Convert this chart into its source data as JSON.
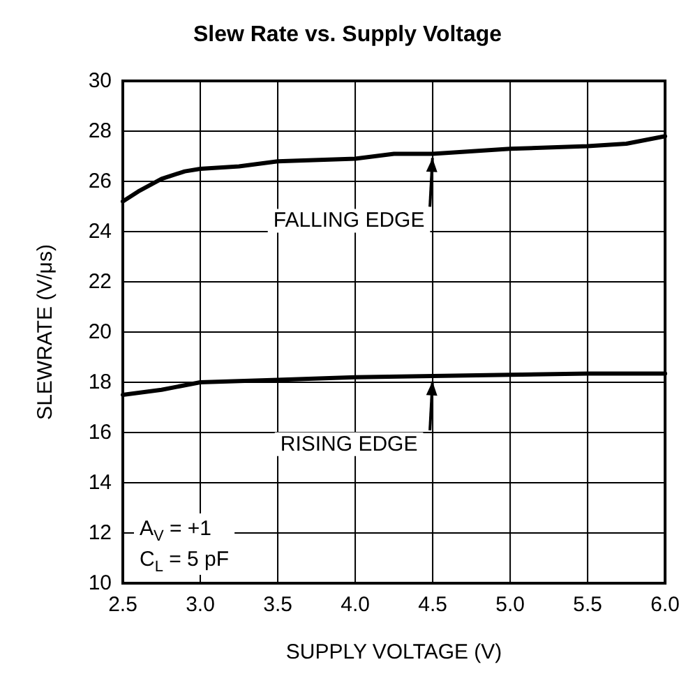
{
  "chart_data": {
    "type": "line",
    "title": "Slew Rate vs. Supply Voltage",
    "xlabel": "SUPPLY VOLTAGE (V)",
    "ylabel": "SLEWRATE (V/μs)",
    "series": [
      {
        "color": "#000000",
        "x": [
          2.5,
          2.6,
          2.75,
          2.9,
          3.0,
          3.25,
          3.5,
          4.0,
          4.25,
          4.5,
          5.0,
          5.5,
          5.75,
          6.0
        ],
        "values": [
          25.2,
          25.6,
          26.1,
          26.4,
          26.5,
          26.6,
          26.8,
          26.9,
          27.1,
          27.1,
          27.3,
          27.4,
          27.5,
          27.8
        ]
      },
      {
        "color": "#000000",
        "x": [
          2.5,
          2.75,
          3.0,
          3.5,
          4.0,
          4.5,
          5.0,
          5.5,
          6.0
        ],
        "values": [
          17.5,
          17.7,
          18.0,
          18.1,
          18.2,
          18.25,
          18.3,
          18.35,
          18.35
        ]
      }
    ],
    "annotations": [
      {
        "text": "FALLING EDGE",
        "x": 4.5,
        "y": 27.1
      },
      {
        "text": "RISING EDGE",
        "x": 4.5,
        "y": 18.2
      },
      "A$_{V}$ = +1",
      "C$_{L}$ = 5 pF"
    ],
    "xlim": [
      2.5,
      6.0
    ],
    "xticks": [
      2.5,
      {
        "value": 3,
        "label": "3.0"
      },
      3.5,
      {
        "value": 4,
        "label": "4.0"
      },
      4.5,
      {
        "value": 5,
        "label": "5.0"
      },
      5.5,
      {
        "value": 6,
        "label": "6.0"
      }
    ],
    "ylim": [
      10,
      30
    ],
    "yticks": [
      10,
      12,
      14,
      16,
      18,
      20,
      22,
      24,
      26,
      28,
      30
    ],
    "grid": true,
    "marker": "none",
    "line_style": "solid"
  }
}
